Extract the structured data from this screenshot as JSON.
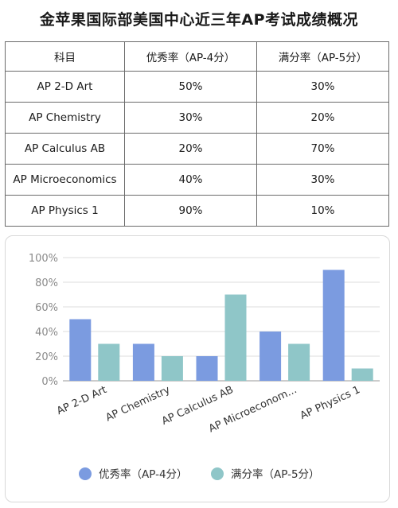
{
  "title": "金苹果国际部美国中心近三年AP考试成绩概况",
  "table": {
    "headers": [
      "科目",
      "优秀率（AP-4分）",
      "满分率（AP-5分）"
    ],
    "rows": [
      [
        "AP 2-D Art",
        "50%",
        "30%"
      ],
      [
        "AP Chemistry",
        "30%",
        "20%"
      ],
      [
        "AP Calculus AB",
        "20%",
        "70%"
      ],
      [
        "AP Microeconomics",
        "40%",
        "30%"
      ],
      [
        "AP Physics 1",
        "90%",
        "10%"
      ]
    ]
  },
  "chart_data": {
    "type": "bar",
    "categories": [
      "AP 2-D Art",
      "AP Chemistry",
      "AP Calculus AB",
      "AP Microeconom...",
      "AP Physics 1"
    ],
    "series": [
      {
        "name": "优秀率（AP-4分）",
        "values": [
          50,
          30,
          20,
          40,
          90
        ],
        "color": "#7b9be0"
      },
      {
        "name": "满分率（AP-5分）",
        "values": [
          30,
          20,
          70,
          30,
          10
        ],
        "color": "#8fc6c8"
      }
    ],
    "ylim": [
      0,
      100
    ],
    "yticks": [
      "0%",
      "20%",
      "40%",
      "60%",
      "80%",
      "100%"
    ],
    "grid": true,
    "legend": "bottom"
  }
}
